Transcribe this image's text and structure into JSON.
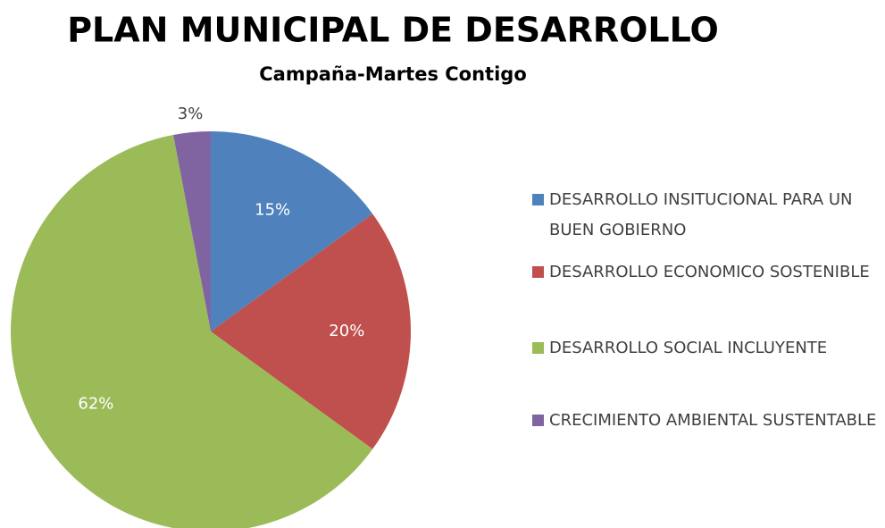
{
  "chart_data": {
    "type": "pie",
    "title": "PLAN MUNICIPAL DE DESARROLLO",
    "subtitle": "Campaña-Martes Contigo",
    "categories": [
      "DESARROLLO INSITUCIONAL PARA UN BUEN GOBIERNO",
      "DESARROLLO ECONOMICO SOSTENIBLE",
      "DESARROLLO SOCIAL INCLUYENTE",
      "CRECIMIENTO AMBIENTAL SUSTENTABLE"
    ],
    "values": [
      15,
      20,
      62,
      3
    ],
    "value_labels": [
      "15%",
      "20%",
      "62%",
      "3%"
    ],
    "colors": [
      "#4f81bd",
      "#c0504d",
      "#9bbb59",
      "#8064a2"
    ],
    "legend": "right"
  }
}
